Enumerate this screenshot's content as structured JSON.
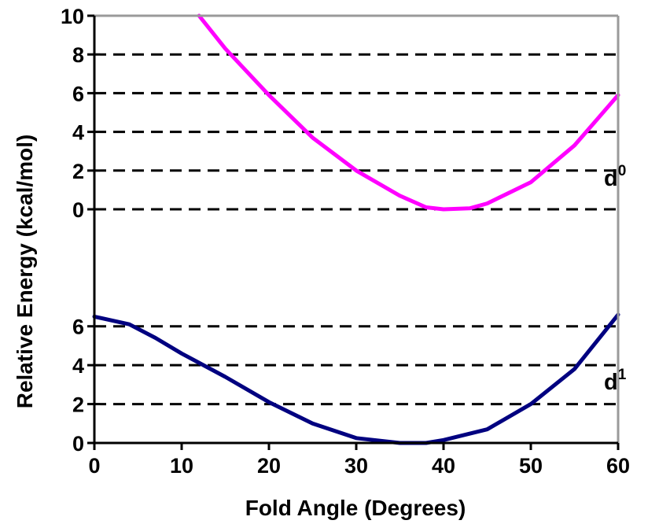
{
  "chart_data": {
    "type": "line",
    "xlabel": "Fold Angle (Degrees)",
    "ylabel": "Relative Energy (kcal/mol)",
    "xlim": [
      0,
      60
    ],
    "x_ticks": [
      "0",
      "10",
      "20",
      "30",
      "40",
      "50",
      "60"
    ],
    "grid": "dashed horizontal lines at labeled y ticks",
    "panels": [
      {
        "id": "upper",
        "ylim": [
          0,
          10
        ],
        "y_ticks": [
          "0",
          "2",
          "4",
          "6",
          "8",
          "10"
        ],
        "series": [
          {
            "label_base": "d",
            "label_sup": "0",
            "color": "#ff00ff",
            "x": [
              12,
              15,
              20,
              25,
              30,
              35,
              38,
              40,
              43,
              45,
              50,
              55,
              60
            ],
            "y": [
              10,
              8.3,
              5.9,
              3.7,
              2.0,
              0.7,
              0.1,
              0.0,
              0.05,
              0.3,
              1.4,
              3.3,
              5.9
            ]
          }
        ]
      },
      {
        "id": "lower",
        "ylim": [
          0,
          7
        ],
        "y_ticks": [
          "0",
          "2",
          "4",
          "6"
        ],
        "series": [
          {
            "label_base": "d",
            "label_sup": "1",
            "color": "#000080",
            "x": [
              0,
              4,
              7,
              10,
              15,
              20,
              25,
              30,
              35,
              38,
              40,
              45,
              50,
              55,
              60
            ],
            "y": [
              6.5,
              6.1,
              5.4,
              4.6,
              3.4,
              2.1,
              1.0,
              0.25,
              0.0,
              0.0,
              0.15,
              0.7,
              2.0,
              3.8,
              6.6
            ]
          }
        ]
      }
    ]
  }
}
